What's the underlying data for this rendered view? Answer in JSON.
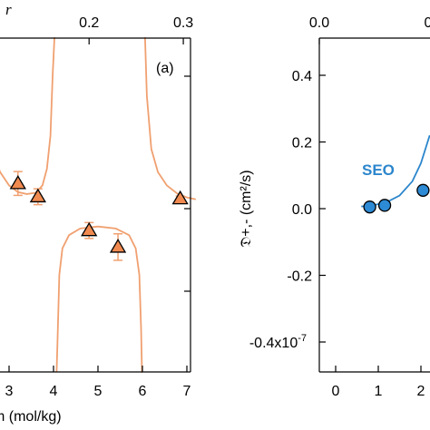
{
  "chart_data": [
    {
      "panel": "left",
      "type": "line",
      "panel_label": "(a)",
      "xlabel": "m (mol/kg)",
      "xlim": [
        2.5,
        7.2
      ],
      "ylim": [
        -0.4,
        0.45
      ],
      "x_ticks": [
        "3",
        "4",
        "5",
        "6",
        "7"
      ],
      "x_tick_values": [
        3,
        4,
        5,
        6,
        7
      ],
      "top_axis_label": "r",
      "top_ticks": [
        "0.2",
        "0.3"
      ],
      "top_tick_positions_m": [
        4.8,
        6.92
      ],
      "curve_color": "#f0a070",
      "marker_color": "#f08a50",
      "asymptotes": [
        4.05,
        6.02
      ],
      "curve_segments": [
        {
          "x": [
            2.55,
            2.8,
            3.0,
            3.2,
            3.4,
            3.6,
            3.75,
            3.85,
            3.93,
            3.98,
            4.02,
            4.04
          ],
          "y": [
            0.1,
            0.055,
            0.035,
            0.025,
            0.022,
            0.024,
            0.035,
            0.06,
            0.11,
            0.2,
            0.35,
            0.45
          ]
        },
        {
          "x": [
            4.07,
            4.09,
            4.13,
            4.2,
            4.35,
            4.6,
            5.0,
            5.4,
            5.7,
            5.85,
            5.93,
            5.97,
            5.99,
            6.0
          ],
          "y": [
            -0.4,
            -0.2,
            -0.1,
            -0.06,
            -0.04,
            -0.03,
            -0.027,
            -0.03,
            -0.04,
            -0.06,
            -0.1,
            -0.18,
            -0.3,
            -0.4
          ]
        },
        {
          "x": [
            6.04,
            6.06,
            6.1,
            6.2,
            6.35,
            6.55,
            6.8,
            7.0,
            7.2
          ],
          "y": [
            0.45,
            0.3,
            0.17,
            0.09,
            0.055,
            0.035,
            0.022,
            0.017,
            0.014
          ]
        }
      ],
      "points": [
        {
          "x": 3.2,
          "y": 0.038,
          "err": 0.018
        },
        {
          "x": 3.65,
          "y": 0.018,
          "err": 0.012
        },
        {
          "x": 4.8,
          "y": -0.033,
          "err": 0.012
        },
        {
          "x": 5.45,
          "y": -0.058,
          "err": 0.02
        },
        {
          "x": 6.85,
          "y": 0.015,
          "err": 0.004
        }
      ]
    },
    {
      "panel": "right",
      "type": "scatter",
      "ylabel": "𝔇+,- (cm²/s)",
      "y_ticks": [
        "0.4",
        "0.2",
        "0.0",
        "-0.2",
        "-0.4x10",
        "-7"
      ],
      "y_tick_values": [
        0.4,
        0.2,
        0.0,
        -0.2,
        -0.4
      ],
      "ylim": [
        -0.4,
        0.42
      ],
      "xlim": [
        0,
        3.2
      ],
      "x_ticks": [
        "0",
        "1",
        "2"
      ],
      "x_tick_values": [
        0,
        1,
        2
      ],
      "top_ticks": [
        "0.0",
        "0"
      ],
      "series_label": "SEO",
      "color": "#2c86cc",
      "marker_fill": "#2d8ad4",
      "points": [
        {
          "x": 0.8,
          "y": 0.005
        },
        {
          "x": 1.15,
          "y": 0.01
        },
        {
          "x": 2.05,
          "y": 0.055
        }
      ]
    }
  ]
}
